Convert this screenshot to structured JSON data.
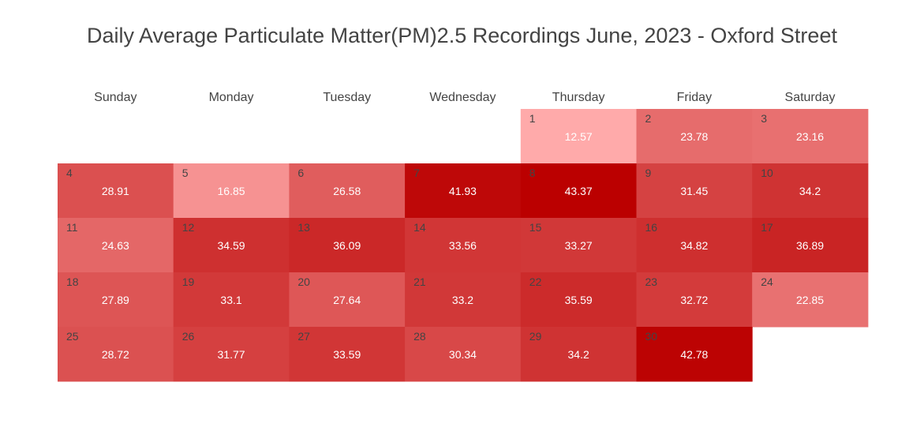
{
  "chart_data": {
    "type": "heatmap",
    "title": "Daily Average Particulate Matter(PM)2.5 Recordings June, 2023 - Oxford Street",
    "weekdays": [
      "Sunday",
      "Monday",
      "Tuesday",
      "Wednesday",
      "Thursday",
      "Friday",
      "Saturday"
    ],
    "month_start_weekday": 4,
    "days": [
      1,
      2,
      3,
      4,
      5,
      6,
      7,
      8,
      9,
      10,
      11,
      12,
      13,
      14,
      15,
      16,
      17,
      18,
      19,
      20,
      21,
      22,
      23,
      24,
      25,
      26,
      27,
      28,
      29,
      30
    ],
    "values": [
      12.57,
      23.78,
      23.16,
      28.91,
      16.85,
      26.58,
      41.93,
      43.37,
      31.45,
      34.2,
      24.63,
      34.59,
      36.09,
      33.56,
      33.27,
      34.82,
      36.89,
      27.89,
      33.1,
      27.64,
      33.2,
      35.59,
      32.72,
      22.85,
      28.72,
      31.77,
      33.59,
      30.34,
      34.2,
      42.78
    ],
    "colorscale": {
      "low_color": "#FFAAAA",
      "high_color": "#BB0000"
    }
  }
}
